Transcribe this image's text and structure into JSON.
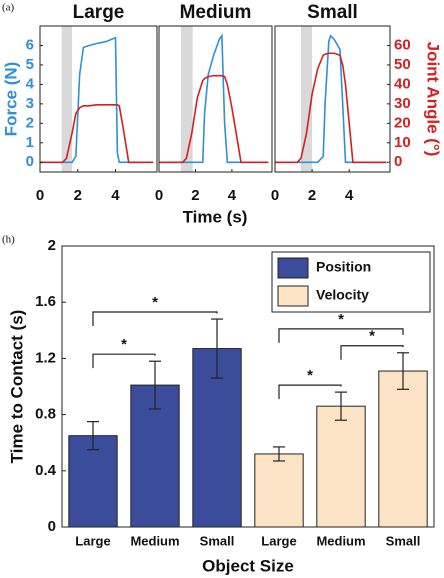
{
  "chart_data": [
    {
      "type": "line",
      "panel": "(a)",
      "title": "Large",
      "ylabel": "Force (N)",
      "x": [
        0,
        1.2,
        1.4,
        1.7,
        1.9,
        2.1,
        2.3,
        2.6,
        3.0,
        3.5,
        4.0,
        4.1,
        4.2,
        4.4,
        4.7,
        6
      ],
      "series": [
        {
          "name": "Force",
          "color": "#2f8fd8",
          "values": [
            0,
            0,
            0,
            0,
            0.3,
            4.5,
            5.9,
            6.0,
            6.1,
            6.2,
            6.4,
            0.5,
            0,
            0,
            0,
            0
          ]
        },
        {
          "name": "Joint Angle",
          "color": "#d42020",
          "axis": "y2",
          "values": [
            0,
            0,
            2,
            15,
            25,
            28,
            29,
            29,
            29.5,
            29.5,
            29.5,
            29.5,
            29,
            18,
            0,
            0
          ]
        }
      ],
      "shaded_region": [
        1.15,
        1.7
      ],
      "xlim": [
        0,
        6.2
      ],
      "xticks": [
        0,
        2,
        4
      ],
      "ylim": [
        -0.5,
        7
      ],
      "yticks": [
        0,
        1,
        2,
        3,
        4,
        5,
        6
      ],
      "y2lim": [
        -5,
        70
      ]
    },
    {
      "type": "line",
      "title": "Medium",
      "xlabel": "Time (s)",
      "x": [
        0,
        1.3,
        1.5,
        1.8,
        2.1,
        2.4,
        2.5,
        2.7,
        3.0,
        3.3,
        3.45,
        3.6,
        3.75,
        4.0,
        4.5,
        6
      ],
      "series": [
        {
          "name": "Force",
          "color": "#2f8fd8",
          "values": [
            0,
            0,
            0,
            0,
            0,
            0,
            2.5,
            4.5,
            5.5,
            6.3,
            6.5,
            2,
            0,
            0,
            0,
            0
          ]
        },
        {
          "name": "Joint Angle",
          "color": "#d42020",
          "axis": "y2",
          "values": [
            0,
            0,
            2,
            15,
            33,
            42,
            43,
            44,
            44.5,
            44.5,
            44.5,
            44,
            40,
            28,
            0,
            0
          ]
        }
      ],
      "shaded_region": [
        1.2,
        1.85
      ],
      "xlim": [
        0,
        6.2
      ],
      "xticks": [
        0,
        2,
        4
      ],
      "ylim": [
        -0.5,
        7
      ],
      "y2lim": [
        -5,
        70
      ]
    },
    {
      "type": "line",
      "title": "Small",
      "y2label": "Joint Angle (°)",
      "x": [
        0,
        1.2,
        1.4,
        1.7,
        2.0,
        2.3,
        2.6,
        2.7,
        2.9,
        3.0,
        3.2,
        3.5,
        3.65,
        3.8,
        4.2,
        6
      ],
      "series": [
        {
          "name": "Force",
          "color": "#2f8fd8",
          "values": [
            0,
            0,
            0,
            0,
            0,
            0,
            0.3,
            3,
            6.2,
            6.5,
            6.3,
            5.8,
            3,
            0,
            0,
            0
          ]
        },
        {
          "name": "Joint Angle",
          "color": "#d42020",
          "axis": "y2",
          "values": [
            0,
            0,
            2,
            15,
            35,
            48,
            55,
            55.5,
            56,
            56,
            56,
            55,
            50,
            40,
            0,
            0
          ]
        }
      ],
      "shaded_region": [
        1.4,
        2.0
      ],
      "xlim": [
        0,
        6.2
      ],
      "xticks": [
        0,
        2,
        4
      ],
      "ylim": [
        -0.5,
        7
      ],
      "y2lim": [
        -5,
        70
      ],
      "y2ticks": [
        0,
        10,
        20,
        30,
        40,
        50,
        60
      ]
    },
    {
      "type": "bar",
      "panel": "(h)",
      "xlabel": "Object Size",
      "ylabel": "Time to Contact (s)",
      "categories": [
        "Large",
        "Medium",
        "Small"
      ],
      "series": [
        {
          "name": "Position",
          "color": "#3b4c9b",
          "values": [
            0.65,
            1.01,
            1.27
          ],
          "errors": [
            0.1,
            0.17,
            0.21
          ]
        },
        {
          "name": "Velocity",
          "color": "#fde3c6",
          "values": [
            0.52,
            0.86,
            1.11
          ],
          "errors": [
            0.05,
            0.1,
            0.13
          ]
        }
      ],
      "significance": [
        {
          "series": 0,
          "from": 0,
          "to": 1,
          "label": "*"
        },
        {
          "series": 0,
          "from": 0,
          "to": 2,
          "label": "*"
        },
        {
          "series": 1,
          "from": 0,
          "to": 1,
          "label": "*"
        },
        {
          "series": 1,
          "from": 1,
          "to": 2,
          "label": "*"
        },
        {
          "series": 1,
          "from": 0,
          "to": 2,
          "label": "*"
        }
      ],
      "ylim": [
        0,
        2
      ],
      "yticks": [
        0,
        0.4,
        0.8,
        1.2,
        1.6,
        2
      ],
      "legend": "upper right"
    }
  ]
}
